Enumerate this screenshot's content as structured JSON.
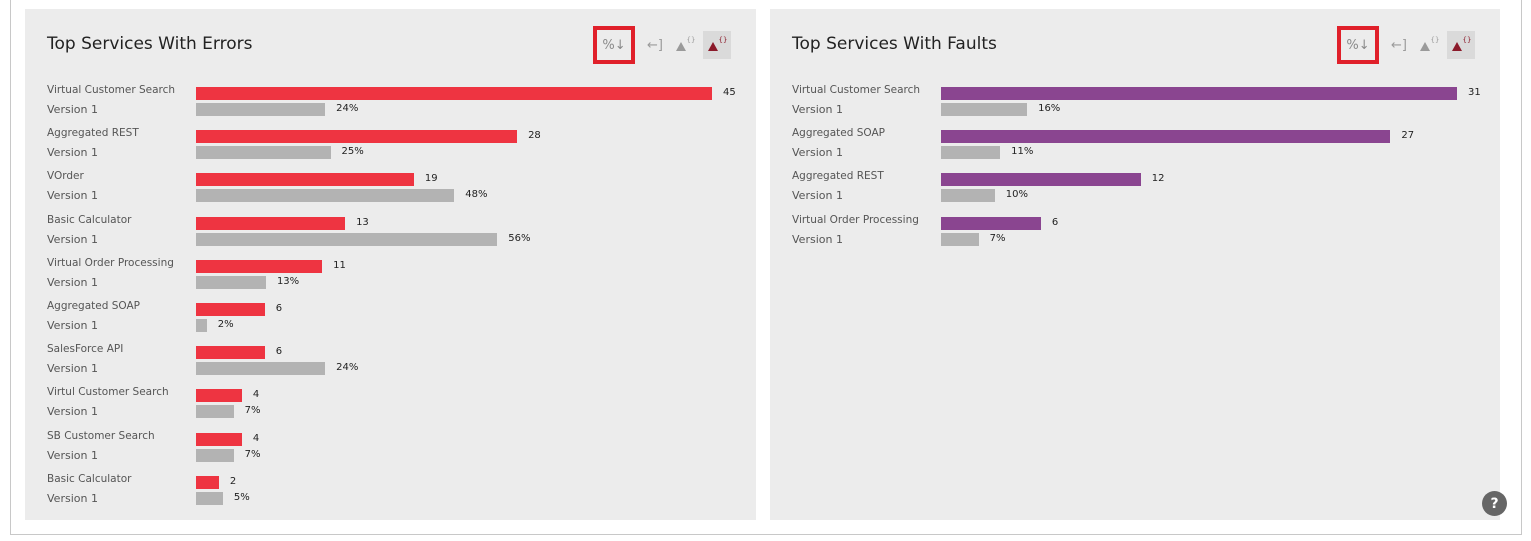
{
  "panels": [
    {
      "id": "errors",
      "title": "Top Services With Errors",
      "bar_color": "#ee3441",
      "toolbar": {
        "sort_label": "%↓",
        "export_label": "←]",
        "filter_icon": "triangle-brace-icon",
        "filter_active_icon": "triangle-brace-active-icon",
        "brace": "{}"
      },
      "max_count": 45,
      "rows": [
        {
          "name": "Virtual Customer Search",
          "version": "Version 1",
          "count": 45,
          "count_label": "45",
          "pct": 24,
          "pct_label": "24%"
        },
        {
          "name": "Aggregated REST",
          "version": "Version 1",
          "count": 28,
          "count_label": "28",
          "pct": 25,
          "pct_label": "25%"
        },
        {
          "name": "VOrder",
          "version": "Version 1",
          "count": 19,
          "count_label": "19",
          "pct": 48,
          "pct_label": "48%"
        },
        {
          "name": "Basic Calculator",
          "version": "Version 1",
          "count": 13,
          "count_label": "13",
          "pct": 56,
          "pct_label": "56%"
        },
        {
          "name": "Virtual Order Processing",
          "version": "Version 1",
          "count": 11,
          "count_label": "11",
          "pct": 13,
          "pct_label": "13%"
        },
        {
          "name": "Aggregated SOAP",
          "version": "Version 1",
          "count": 6,
          "count_label": "6",
          "pct": 2,
          "pct_label": "2%"
        },
        {
          "name": "SalesForce API",
          "version": "Version 1",
          "count": 6,
          "count_label": "6",
          "pct": 24,
          "pct_label": "24%"
        },
        {
          "name": "Virtul Customer Search",
          "version": "Version 1",
          "count": 4,
          "count_label": "4",
          "pct": 7,
          "pct_label": "7%"
        },
        {
          "name": "SB Customer Search",
          "version": "Version 1",
          "count": 4,
          "count_label": "4",
          "pct": 7,
          "pct_label": "7%"
        },
        {
          "name": "Basic Calculator",
          "version": "Version 1",
          "count": 2,
          "count_label": "2",
          "pct": 5,
          "pct_label": "5%"
        }
      ]
    },
    {
      "id": "faults",
      "title": "Top Services With Faults",
      "bar_color": "#8a4590",
      "toolbar": {
        "sort_label": "%↓",
        "export_label": "←]",
        "filter_icon": "triangle-brace-icon",
        "filter_active_icon": "triangle-brace-active-icon",
        "brace": "{}"
      },
      "max_count": 31,
      "rows": [
        {
          "name": "Virtual Customer Search",
          "version": "Version 1",
          "count": 31,
          "count_label": "31",
          "pct": 16,
          "pct_label": "16%"
        },
        {
          "name": "Aggregated SOAP",
          "version": "Version 1",
          "count": 27,
          "count_label": "27",
          "pct": 11,
          "pct_label": "11%"
        },
        {
          "name": "Aggregated REST",
          "version": "Version 1",
          "count": 12,
          "count_label": "12",
          "pct": 10,
          "pct_label": "10%"
        },
        {
          "name": "Virtual Order Processing",
          "version": "Version 1",
          "count": 6,
          "count_label": "6",
          "pct": 7,
          "pct_label": "7%"
        }
      ]
    }
  ],
  "help_label": "?"
}
